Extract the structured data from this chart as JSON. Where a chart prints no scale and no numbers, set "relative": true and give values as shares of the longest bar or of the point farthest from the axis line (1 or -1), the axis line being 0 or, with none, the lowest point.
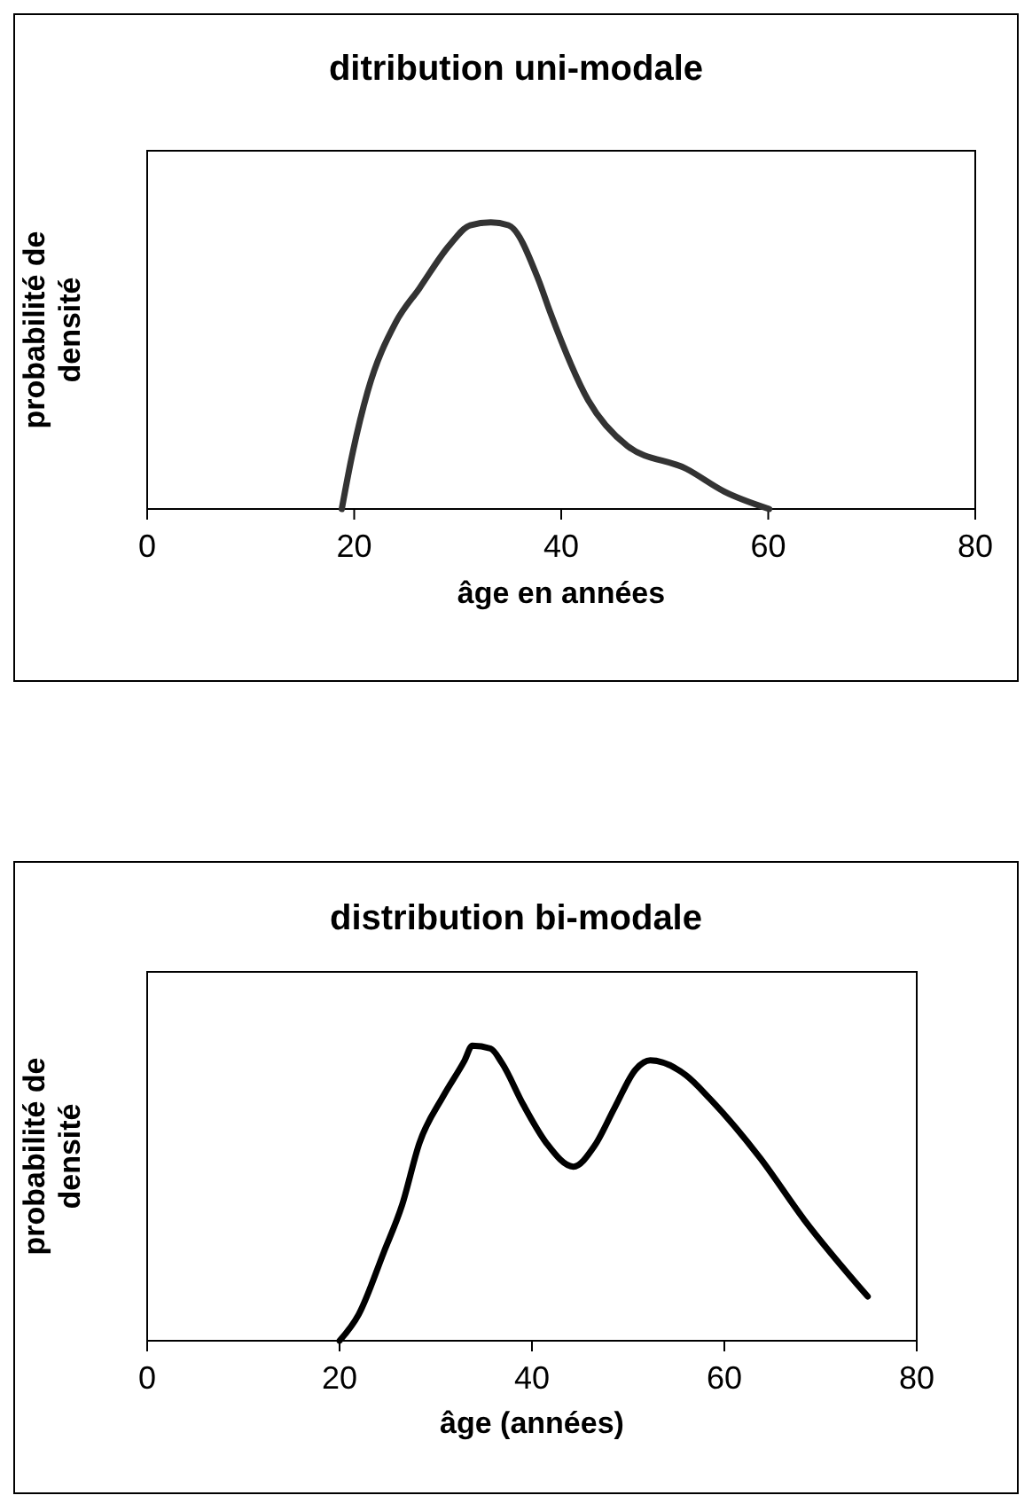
{
  "chart_data": [
    {
      "type": "line",
      "title": "ditribution uni-modale",
      "xlabel": "âge en années",
      "ylabel": "probabilité de densité",
      "relative": true,
      "xlim": [
        0,
        80
      ],
      "xticks": [
        0,
        20,
        40,
        60,
        80
      ],
      "grid": false,
      "marker": "none",
      "line_style": "solid",
      "series": [
        {
          "color": "#333333",
          "x": [
            18.8,
            19.7,
            21.3,
            24.0,
            26.3,
            29.2,
            31.2,
            33.2,
            34.9,
            37.8,
            38.9,
            42.6,
            46.4,
            52.1,
            55.8,
            60.1
          ],
          "values": [
            0,
            0.17,
            0.41,
            0.65,
            0.77,
            0.92,
            0.99,
            1,
            0.99,
            0.8,
            0.69,
            0.38,
            0.22,
            0.14,
            0.06,
            0
          ]
        }
      ]
    },
    {
      "type": "line",
      "title": "distribution bi-modale",
      "xlabel": "âge (années)",
      "ylabel": "probabilité de densité",
      "relative": true,
      "xlim": [
        0,
        80
      ],
      "xticks": [
        0,
        20,
        40,
        60,
        80
      ],
      "grid": false,
      "marker": "none",
      "line_style": "solid",
      "series": [
        {
          "color": "#000000",
          "x": [
            20.0,
            22.0,
            24.6,
            26.5,
            28.3,
            30.8,
            33.0,
            33.8,
            35.7,
            36.9,
            39.1,
            41.5,
            44.3,
            46.5,
            48.6,
            50.8,
            52.3,
            56.0,
            58.5,
            63.7,
            68.3,
            74.9
          ],
          "values": [
            0,
            0.09,
            0.3,
            0.46,
            0.67,
            0.83,
            0.95,
            1,
            0.99,
            0.94,
            0.8,
            0.67,
            0.59,
            0.66,
            0.79,
            0.92,
            0.95,
            0.9,
            0.82,
            0.62,
            0.41,
            0.15
          ]
        }
      ]
    }
  ]
}
